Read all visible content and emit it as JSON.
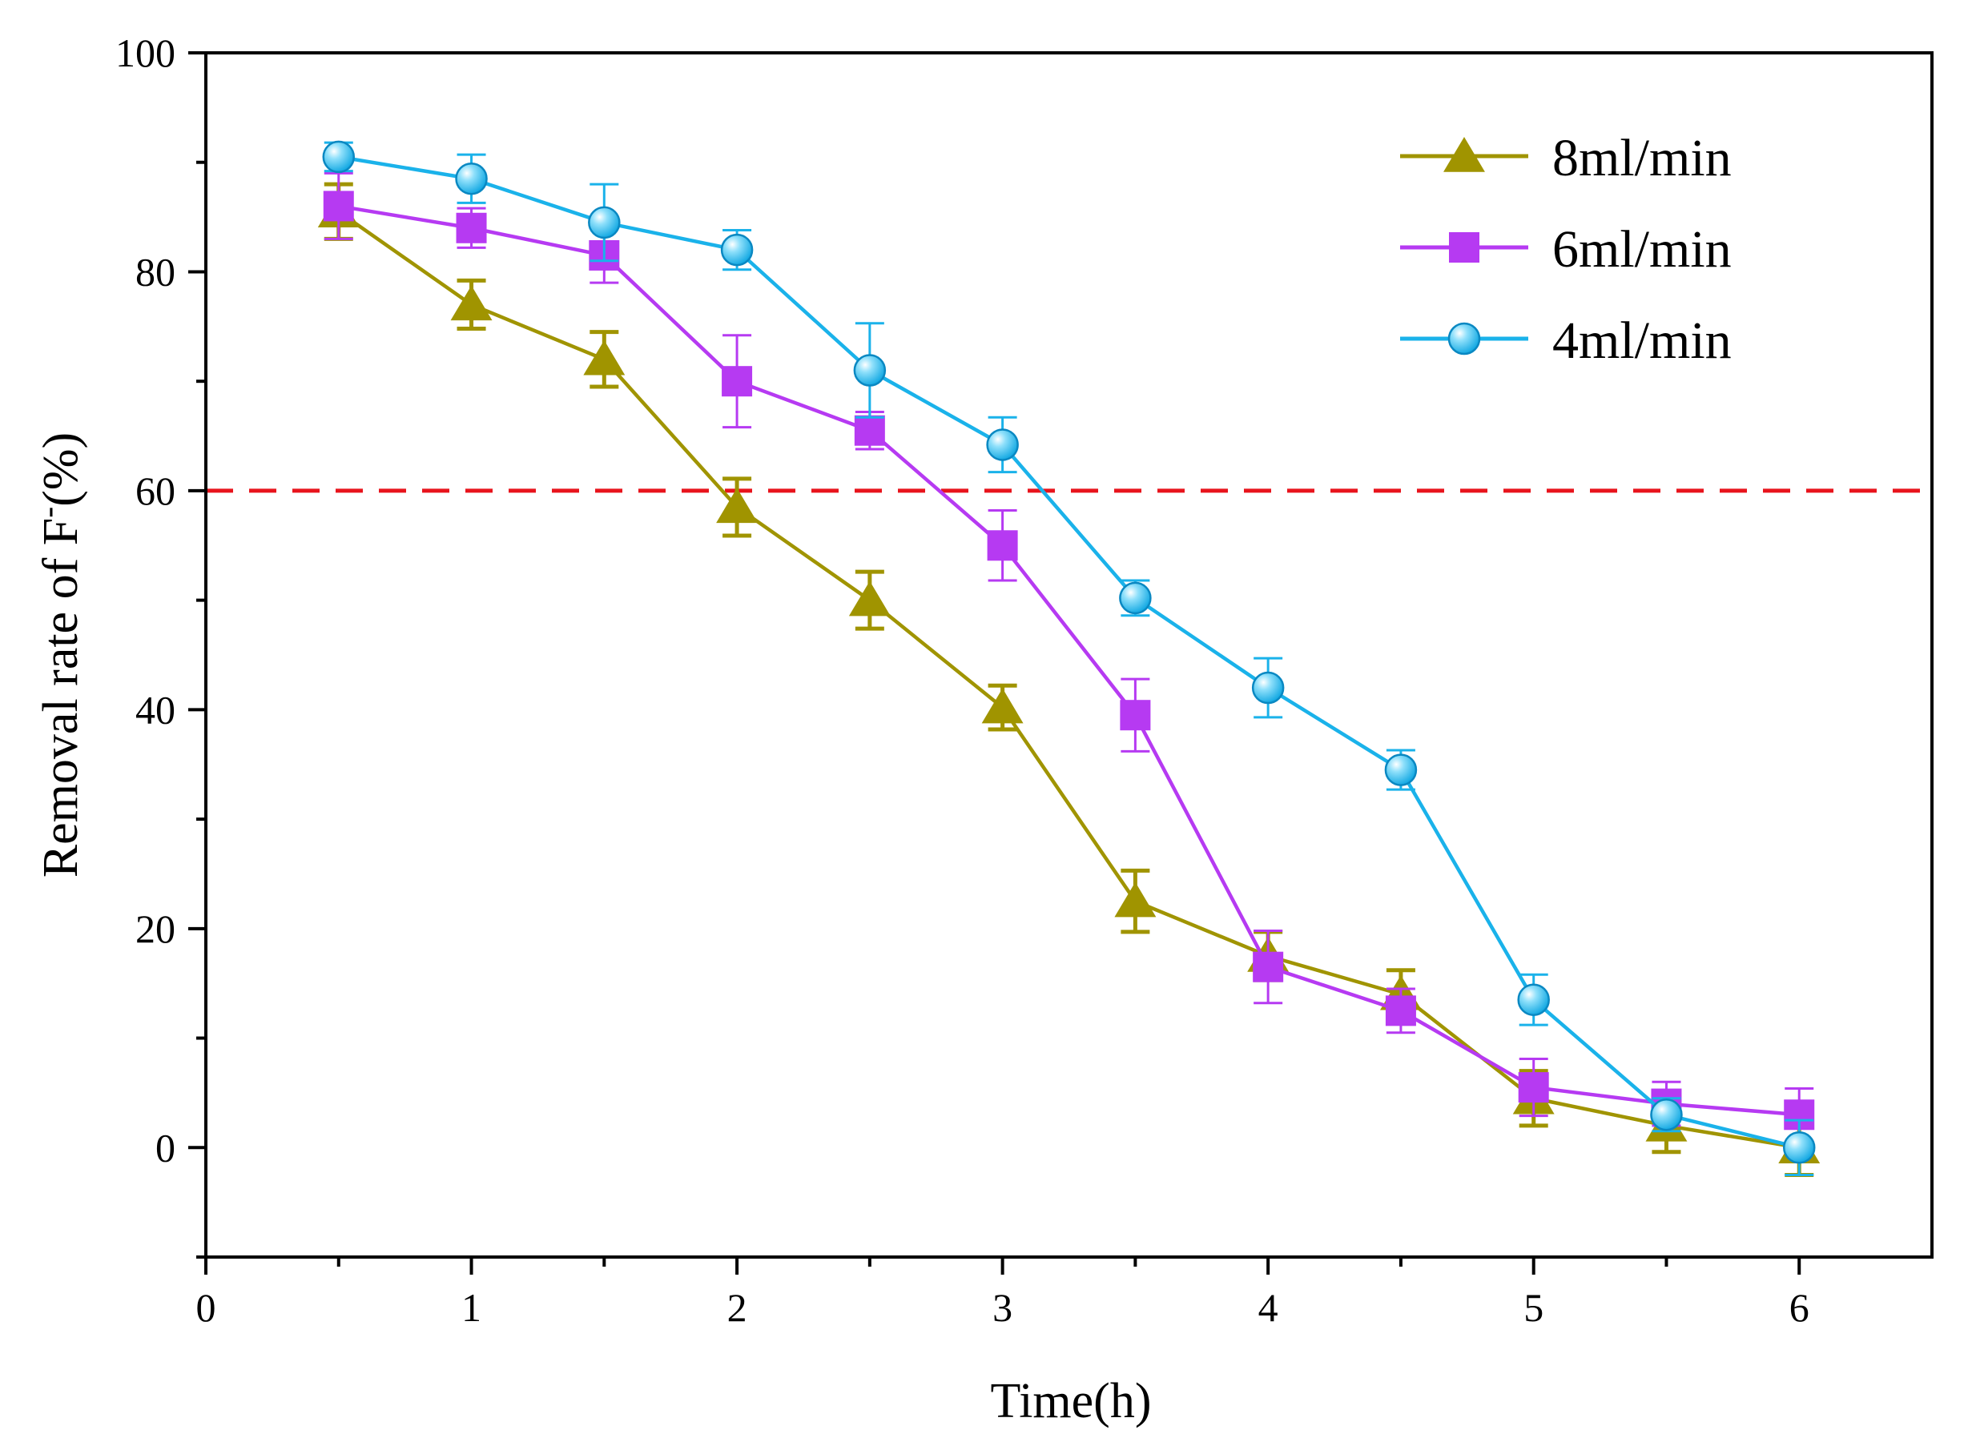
{
  "chart_data": {
    "type": "line",
    "title": "",
    "xlabel": "Time(h)",
    "ylabel": "Removal rate of F",
    "ylabel_superscript": "-",
    "ylabel_suffix": "(%)",
    "xlim": [
      0,
      6.5
    ],
    "ylim": [
      -10,
      100
    ],
    "xticks": [
      0,
      1,
      2,
      3,
      4,
      5,
      6
    ],
    "xminor": [
      0.5,
      1.5,
      2.5,
      3.5,
      4.5,
      5.5
    ],
    "yticks": [
      0,
      20,
      40,
      60,
      80,
      100
    ],
    "yminor": [
      -10,
      10,
      30,
      50,
      70,
      90
    ],
    "grid": false,
    "legend_position": "top-right",
    "reference_line": {
      "y": 60,
      "color": "#e8141c",
      "style": "dashed"
    },
    "x": [
      0.5,
      1,
      1.5,
      2,
      2.5,
      3,
      3.5,
      4,
      4.5,
      5,
      5.5,
      6
    ],
    "series": [
      {
        "name": "8ml/min",
        "color": "#a09400",
        "marker": "triangle",
        "values": [
          85.5,
          77,
          72,
          58.5,
          50,
          40.2,
          22.5,
          17.5,
          14,
          4.5,
          2,
          0
        ],
        "errors": [
          2.5,
          2.2,
          2.5,
          2.6,
          2.6,
          2.0,
          2.8,
          2.2,
          2.2,
          2.5,
          2.4,
          2.5
        ]
      },
      {
        "name": "6ml/min",
        "color": "#b63af2",
        "marker": "square",
        "values": [
          86,
          84,
          81.5,
          70,
          65.5,
          55,
          39.5,
          16.5,
          12.5,
          5.5,
          4,
          3
        ],
        "errors": [
          3,
          1.8,
          2.5,
          4.2,
          1.7,
          3.2,
          3.3,
          3.3,
          2,
          2.6,
          2.0,
          2.4
        ]
      },
      {
        "name": "4ml/min",
        "color": "#1ab2ea",
        "marker": "circle",
        "values": [
          90.5,
          88.5,
          84.5,
          82,
          71,
          64.2,
          50.2,
          42,
          34.5,
          13.5,
          3,
          0
        ],
        "errors": [
          1.3,
          2.2,
          3.5,
          1.8,
          4.3,
          2.5,
          1.6,
          2.7,
          1.8,
          2.3,
          1.5,
          2.5
        ]
      }
    ]
  }
}
